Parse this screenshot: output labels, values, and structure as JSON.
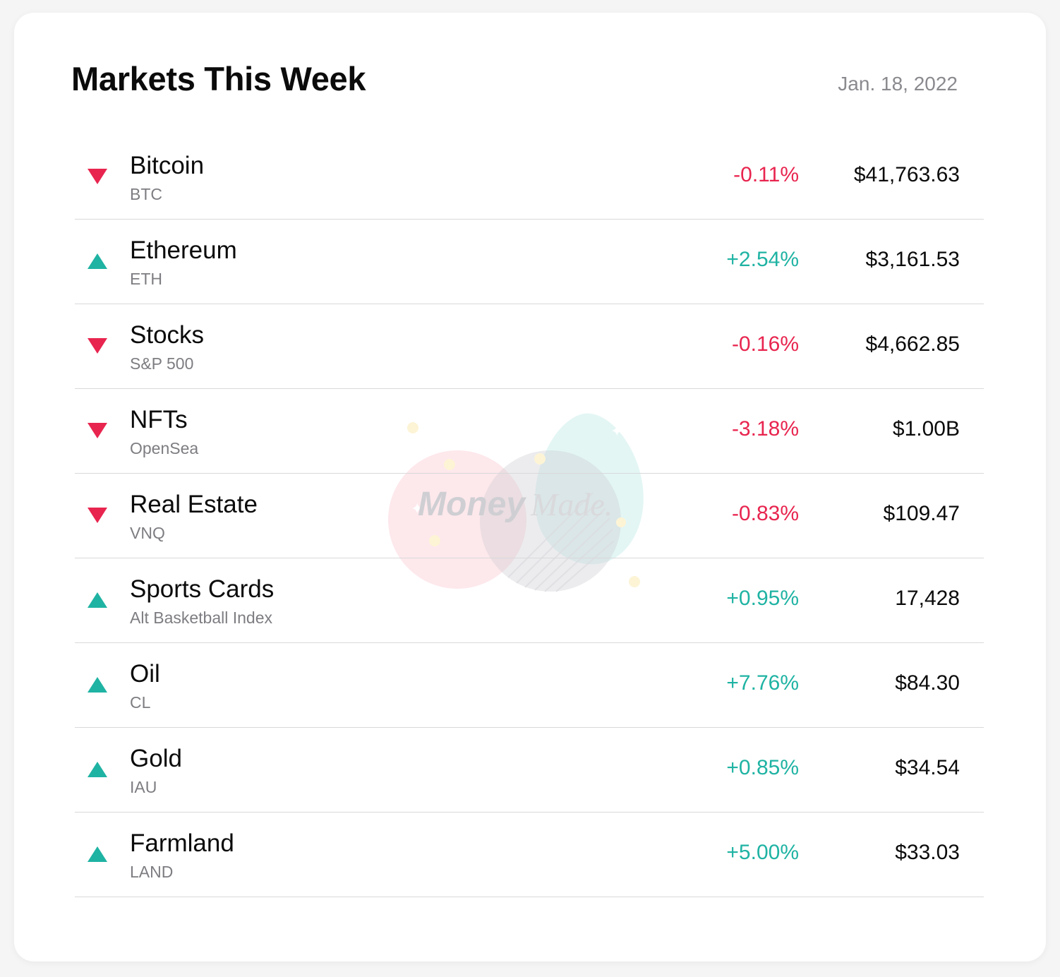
{
  "header": {
    "title": "Markets This Week",
    "date": "Jan. 18, 2022"
  },
  "colors": {
    "down": "#e8254f",
    "up": "#1fb3a3"
  },
  "watermark": {
    "brand_bold": "Money",
    "brand_light": "Made."
  },
  "markets": [
    {
      "name": "Bitcoin",
      "ticker": "BTC",
      "change": "-0.11%",
      "value": "$41,763.63",
      "direction": "down"
    },
    {
      "name": "Ethereum",
      "ticker": "ETH",
      "change": "+2.54%",
      "value": "$3,161.53",
      "direction": "up"
    },
    {
      "name": "Stocks",
      "ticker": "S&P 500",
      "change": "-0.16%",
      "value": "$4,662.85",
      "direction": "down"
    },
    {
      "name": "NFTs",
      "ticker": "OpenSea",
      "change": "-3.18%",
      "value": "$1.00B",
      "direction": "down"
    },
    {
      "name": "Real Estate",
      "ticker": "VNQ",
      "change": "-0.83%",
      "value": "$109.47",
      "direction": "down"
    },
    {
      "name": "Sports Cards",
      "ticker": "Alt Basketball Index",
      "change": "+0.95%",
      "value": "17,428",
      "direction": "up"
    },
    {
      "name": "Oil",
      "ticker": "CL",
      "change": "+7.76%",
      "value": "$84.30",
      "direction": "up"
    },
    {
      "name": "Gold",
      "ticker": "IAU",
      "change": "+0.85%",
      "value": "$34.54",
      "direction": "up"
    },
    {
      "name": "Farmland",
      "ticker": "LAND",
      "change": "+5.00%",
      "value": "$33.03",
      "direction": "up"
    }
  ]
}
